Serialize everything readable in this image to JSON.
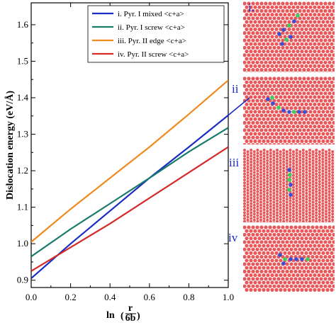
{
  "chart_data": {
    "type": "line",
    "ylabel": "Dislocation energy (eV/Å)",
    "xlabel_prefix": "ln",
    "xlabel_frac_num": "r",
    "xlabel_frac_den": "6b",
    "xlim": [
      0.0,
      1.0
    ],
    "ylim": [
      0.88,
      1.66
    ],
    "xticks": [
      "0.0",
      "0.2",
      "0.4",
      "0.6",
      "0.8",
      "1.0"
    ],
    "yticks": [
      "0.9",
      "1.0",
      "1.1",
      "1.2",
      "1.3",
      "1.4",
      "1.5",
      "1.6"
    ],
    "legend_position": "top-right",
    "series": [
      {
        "name": "i. Pyr. I mixed <c+a>",
        "color": "#1a2cc4",
        "x": [
          0,
          0.2,
          0.4,
          0.6,
          0.8,
          1.0
        ],
        "y": [
          0.905,
          1.0,
          1.09,
          1.18,
          1.265,
          1.352
        ]
      },
      {
        "name": "ii. Pyr. I screw <c+a>",
        "color": "#197b6b",
        "x": [
          0,
          0.2,
          0.4,
          0.6,
          0.8,
          1.0
        ],
        "y": [
          0.965,
          1.04,
          1.11,
          1.18,
          1.252,
          1.318
        ]
      },
      {
        "name": "iii. Pyr. II edge <c+a>",
        "color": "#f08a1e",
        "x": [
          0,
          0.2,
          0.4,
          0.6,
          0.8,
          1.0
        ],
        "y": [
          1.005,
          1.095,
          1.18,
          1.265,
          1.355,
          1.448
        ]
      },
      {
        "name": "iv. Pyr. II screw <c+a>",
        "color": "#d42a2a",
        "x": [
          0,
          0.2,
          0.4,
          0.6,
          0.8,
          1.0
        ],
        "y": [
          0.925,
          0.99,
          1.055,
          1.125,
          1.195,
          1.265
        ]
      }
    ]
  },
  "panels": [
    {
      "label": "i.",
      "lattice": "hex"
    },
    {
      "label": "ii",
      "lattice": "hex"
    },
    {
      "label": "iii",
      "lattice": "columns"
    },
    {
      "label": "iv",
      "lattice": "hex"
    }
  ],
  "atom_colors": {
    "bulk": "#e8585a",
    "core_blue": "#3a4fd8",
    "core_green": "#35d35a"
  }
}
